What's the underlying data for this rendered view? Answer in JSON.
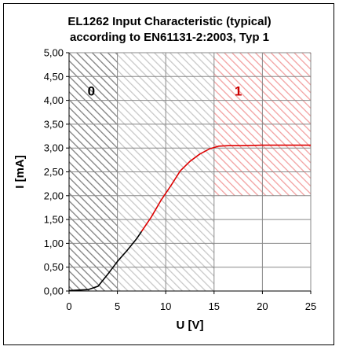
{
  "chart_data": {
    "type": "line",
    "title_lines": [
      "EL1262 Input Characteristic (typical)",
      "according to EN61131-2:2003, Typ 1"
    ],
    "xlabel": "U [V]",
    "ylabel": "I [mA]",
    "xlim": [
      0,
      25
    ],
    "ylim": [
      0,
      5
    ],
    "x_ticks": [
      "0",
      "5",
      "10",
      "15",
      "20",
      "25"
    ],
    "y_ticks": [
      "0,00",
      "0,50",
      "1,00",
      "1,50",
      "2,00",
      "2,50",
      "3,00",
      "3,50",
      "4,00",
      "4,50",
      "5,00"
    ],
    "grid": true,
    "regions": [
      {
        "label": "0",
        "x": [
          0,
          5
        ],
        "y": [
          0,
          5
        ],
        "color": "#7f7f7f",
        "label_color": "#000000",
        "label_pos": [
          2.3,
          4.1
        ]
      },
      {
        "label": "",
        "x": [
          5,
          15
        ],
        "y": [
          0,
          5
        ],
        "color": "#c8c8c8",
        "label_color": "#000000",
        "label_pos": null
      },
      {
        "label": "1",
        "x": [
          15,
          25
        ],
        "y": [
          2,
          5
        ],
        "color": "#f2a0a0",
        "label_color": "#cc0000",
        "label_pos": [
          17.5,
          4.1
        ]
      }
    ],
    "series": [
      {
        "color": "#000000",
        "points": [
          [
            0,
            0.01
          ],
          [
            1,
            0.02
          ],
          [
            2,
            0.03
          ],
          [
            3,
            0.1
          ],
          [
            4,
            0.35
          ],
          [
            5,
            0.62
          ],
          [
            6,
            0.85
          ],
          [
            7,
            1.1
          ],
          [
            7.5,
            1.25
          ]
        ]
      },
      {
        "color": "#dd0000",
        "points": [
          [
            7.5,
            1.25
          ],
          [
            8.5,
            1.55
          ],
          [
            9.5,
            1.9
          ],
          [
            10.5,
            2.2
          ],
          [
            11.5,
            2.52
          ],
          [
            12.5,
            2.72
          ],
          [
            13.5,
            2.87
          ],
          [
            14.5,
            2.98
          ],
          [
            15.5,
            3.04
          ],
          [
            16.5,
            3.05
          ],
          [
            18,
            3.05
          ],
          [
            20,
            3.06
          ],
          [
            22,
            3.06
          ],
          [
            25,
            3.06
          ]
        ]
      }
    ]
  }
}
